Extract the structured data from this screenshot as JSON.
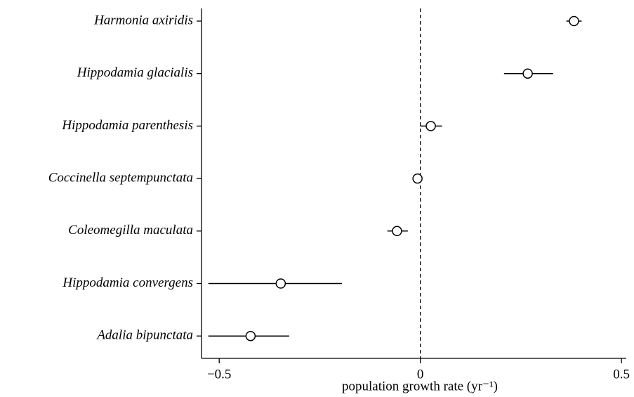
{
  "chart_data": {
    "type": "errorbar",
    "categories": [
      "Harmonia axiridis",
      "Hippodamia glacialis",
      "Hippodamia parenthesis",
      "Coccinella septempunctata",
      "Coleomegilla maculata",
      "Hippodamia convergens",
      "Adalia bipunctata"
    ],
    "values": [
      0.382,
      0.267,
      0.026,
      -0.007,
      -0.058,
      -0.347,
      -0.422
    ],
    "lower": [
      0.363,
      0.208,
      0.0,
      -0.017,
      -0.082,
      -0.527,
      -0.527
    ],
    "upper": [
      0.401,
      0.33,
      0.054,
      0.003,
      -0.031,
      -0.195,
      -0.326
    ],
    "color": "#000000",
    "xlabel": "population growth rate (yr⁻¹)",
    "xlim": [
      -0.544,
      0.512
    ],
    "xticks": [
      {
        "value": -0.5,
        "label": "−0.5"
      },
      0,
      0.5
    ],
    "reference_line": 0
  }
}
